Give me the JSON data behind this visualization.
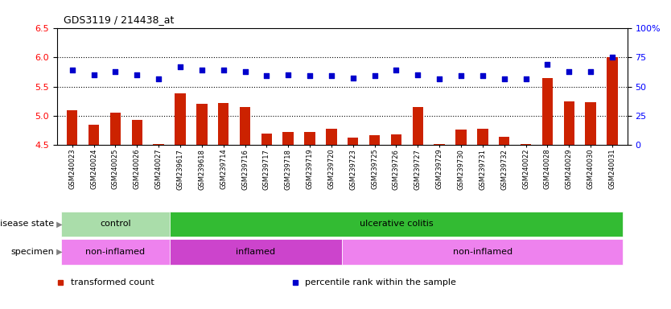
{
  "title": "GDS3119 / 214438_at",
  "samples": [
    "GSM240023",
    "GSM240024",
    "GSM240025",
    "GSM240026",
    "GSM240027",
    "GSM239617",
    "GSM239618",
    "GSM239714",
    "GSM239716",
    "GSM239717",
    "GSM239718",
    "GSM239719",
    "GSM239720",
    "GSM239723",
    "GSM239725",
    "GSM239726",
    "GSM239727",
    "GSM239729",
    "GSM239730",
    "GSM239731",
    "GSM239732",
    "GSM240022",
    "GSM240028",
    "GSM240029",
    "GSM240030",
    "GSM240031"
  ],
  "bar_values": [
    5.1,
    4.85,
    5.05,
    4.93,
    4.52,
    5.38,
    5.2,
    5.22,
    5.15,
    4.7,
    4.73,
    4.73,
    4.78,
    4.63,
    4.67,
    4.69,
    5.15,
    4.52,
    4.77,
    4.78,
    4.65,
    4.52,
    5.65,
    5.25,
    5.23,
    6.0
  ],
  "dot_values": [
    5.78,
    5.7,
    5.75,
    5.7,
    5.63,
    5.83,
    5.78,
    5.78,
    5.75,
    5.68,
    5.7,
    5.68,
    5.68,
    5.65,
    5.68,
    5.78,
    5.7,
    5.63,
    5.68,
    5.68,
    5.63,
    5.63,
    5.88,
    5.75,
    5.75,
    6.0
  ],
  "ylim": [
    4.5,
    6.5
  ],
  "yticks_left": [
    4.5,
    5.0,
    5.5,
    6.0,
    6.5
  ],
  "yticks_right": [
    0,
    25,
    50,
    75,
    100
  ],
  "bar_color": "#CC2200",
  "dot_color": "#0000CC",
  "plot_bg_color": "#FFFFFF",
  "disease_state_groups": [
    {
      "label": "control",
      "start": 0,
      "end": 5,
      "color": "#AADDAA"
    },
    {
      "label": "ulcerative colitis",
      "start": 5,
      "end": 26,
      "color": "#33BB33"
    }
  ],
  "specimen_groups": [
    {
      "label": "non-inflamed",
      "start": 0,
      "end": 5,
      "color": "#EE82EE"
    },
    {
      "label": "inflamed",
      "start": 5,
      "end": 13,
      "color": "#CC44CC"
    },
    {
      "label": "non-inflamed",
      "start": 13,
      "end": 26,
      "color": "#EE82EE"
    }
  ],
  "disease_state_label": "disease state",
  "specimen_label": "specimen",
  "legend_items": [
    {
      "label": "transformed count",
      "color": "#CC2200",
      "marker": "s"
    },
    {
      "label": "percentile rank within the sample",
      "color": "#0000CC",
      "marker": "s"
    }
  ],
  "n_samples": 26,
  "grid_lines": [
    5.0,
    5.5,
    6.0
  ]
}
